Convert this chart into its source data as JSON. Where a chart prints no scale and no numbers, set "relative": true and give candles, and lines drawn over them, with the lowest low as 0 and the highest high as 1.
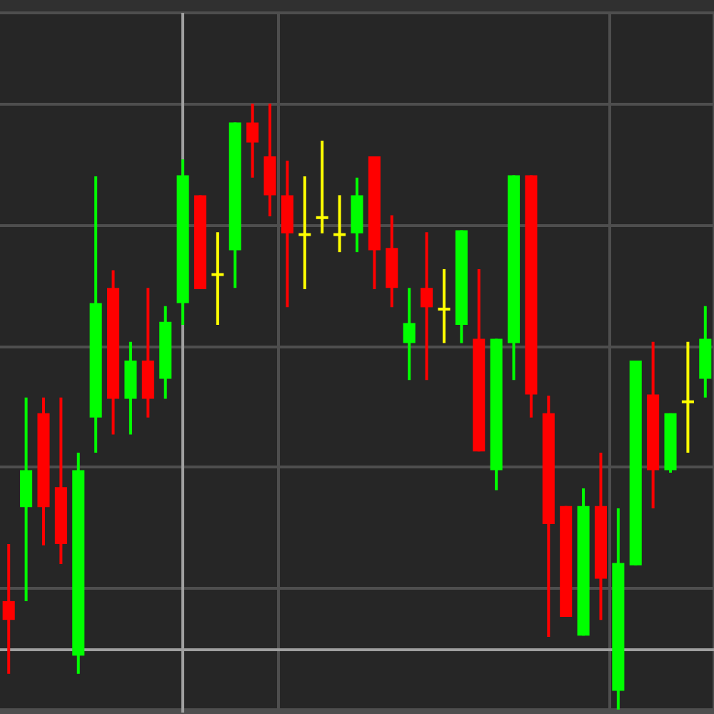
{
  "chart_data": {
    "type": "candlestick",
    "relative": true,
    "tick_labels": false,
    "grid": true,
    "categories": [
      null,
      null,
      null,
      null,
      null,
      null,
      null,
      null,
      null,
      null,
      null,
      null,
      null,
      null,
      null,
      null,
      null,
      null,
      null,
      null,
      null,
      null,
      null,
      null,
      null,
      null,
      null,
      null,
      null,
      null,
      null,
      null,
      null,
      null,
      null,
      null,
      null,
      null,
      null,
      null,
      null
    ],
    "ohlc": [
      [
        0.179,
        0.273,
        0.059,
        0.148
      ],
      [
        0.334,
        0.515,
        0.179,
        0.395
      ],
      [
        0.489,
        0.515,
        0.271,
        0.334
      ],
      [
        0.367,
        0.515,
        0.24,
        0.273
      ],
      [
        0.089,
        0.424,
        0.059,
        0.395
      ],
      [
        0.482,
        0.88,
        0.424,
        0.671
      ],
      [
        0.696,
        0.725,
        0.454,
        0.513
      ],
      [
        0.513,
        0.607,
        0.454,
        0.576
      ],
      [
        0.576,
        0.696,
        0.482,
        0.513
      ],
      [
        0.546,
        0.666,
        0.513,
        0.64
      ],
      [
        0.671,
        0.908,
        0.635,
        0.882
      ],
      [
        0.849,
        0.849,
        0.694,
        0.694
      ],
      [
        0.718,
        0.788,
        0.635,
        0.718
      ],
      [
        0.758,
        0.969,
        0.696,
        0.969
      ],
      [
        0.969,
        1,
        0.878,
        0.936
      ],
      [
        0.913,
        1,
        0.814,
        0.849
      ],
      [
        0.849,
        0.906,
        0.664,
        0.786
      ],
      [
        0.784,
        0.88,
        0.694,
        0.784
      ],
      [
        0.812,
        0.939,
        0.786,
        0.812
      ],
      [
        0.784,
        0.849,
        0.755,
        0.784
      ],
      [
        0.786,
        0.878,
        0.755,
        0.849
      ],
      [
        0.913,
        0.913,
        0.694,
        0.758
      ],
      [
        0.762,
        0.816,
        0.664,
        0.696
      ],
      [
        0.605,
        0.696,
        0.544,
        0.638
      ],
      [
        0.696,
        0.788,
        0.544,
        0.664
      ],
      [
        0.661,
        0.727,
        0.605,
        0.661
      ],
      [
        0.635,
        0.791,
        0.605,
        0.791
      ],
      [
        0.612,
        0.727,
        0.426,
        0.426
      ],
      [
        0.395,
        0.612,
        0.362,
        0.612
      ],
      [
        0.605,
        0.882,
        0.544,
        0.882
      ],
      [
        0.882,
        0.882,
        0.482,
        0.52
      ],
      [
        0.489,
        0.518,
        0.12,
        0.306
      ],
      [
        0.336,
        0.336,
        0.153,
        0.153
      ],
      [
        0.122,
        0.365,
        0.122,
        0.336
      ],
      [
        0.336,
        0.424,
        0.148,
        0.216
      ],
      [
        0.031,
        0.332,
        0,
        0.242
      ],
      [
        0.238,
        0.576,
        0.238,
        0.576
      ],
      [
        0.52,
        0.607,
        0.332,
        0.395
      ],
      [
        0.395,
        0.489,
        0.391,
        0.489
      ],
      [
        0.508,
        0.607,
        0.424,
        0.508
      ],
      [
        0.546,
        0.666,
        0.515,
        0.612
      ]
    ],
    "colors": [
      "#ff0000",
      "#00ff00",
      "#ff0000",
      "#ff0000",
      "#00ff00",
      "#00ff00",
      "#ff0000",
      "#00ff00",
      "#ff0000",
      "#00ff00",
      "#00ff00",
      "#ff0000",
      "#ffff00",
      "#00ff00",
      "#ff0000",
      "#ff0000",
      "#ff0000",
      "#ffff00",
      "#ffff00",
      "#ffff00",
      "#00ff00",
      "#ff0000",
      "#ff0000",
      "#00ff00",
      "#ff0000",
      "#ffff00",
      "#00ff00",
      "#ff0000",
      "#00ff00",
      "#00ff00",
      "#ff0000",
      "#ff0000",
      "#ff0000",
      "#00ff00",
      "#ff0000",
      "#00ff00",
      "#00ff00",
      "#ff0000",
      "#00ff00",
      "#ffff00",
      "#00ff00"
    ],
    "ref_lines": [
      {
        "axis": "y",
        "value": 0.096,
        "color": "#a0a0a0"
      }
    ]
  }
}
